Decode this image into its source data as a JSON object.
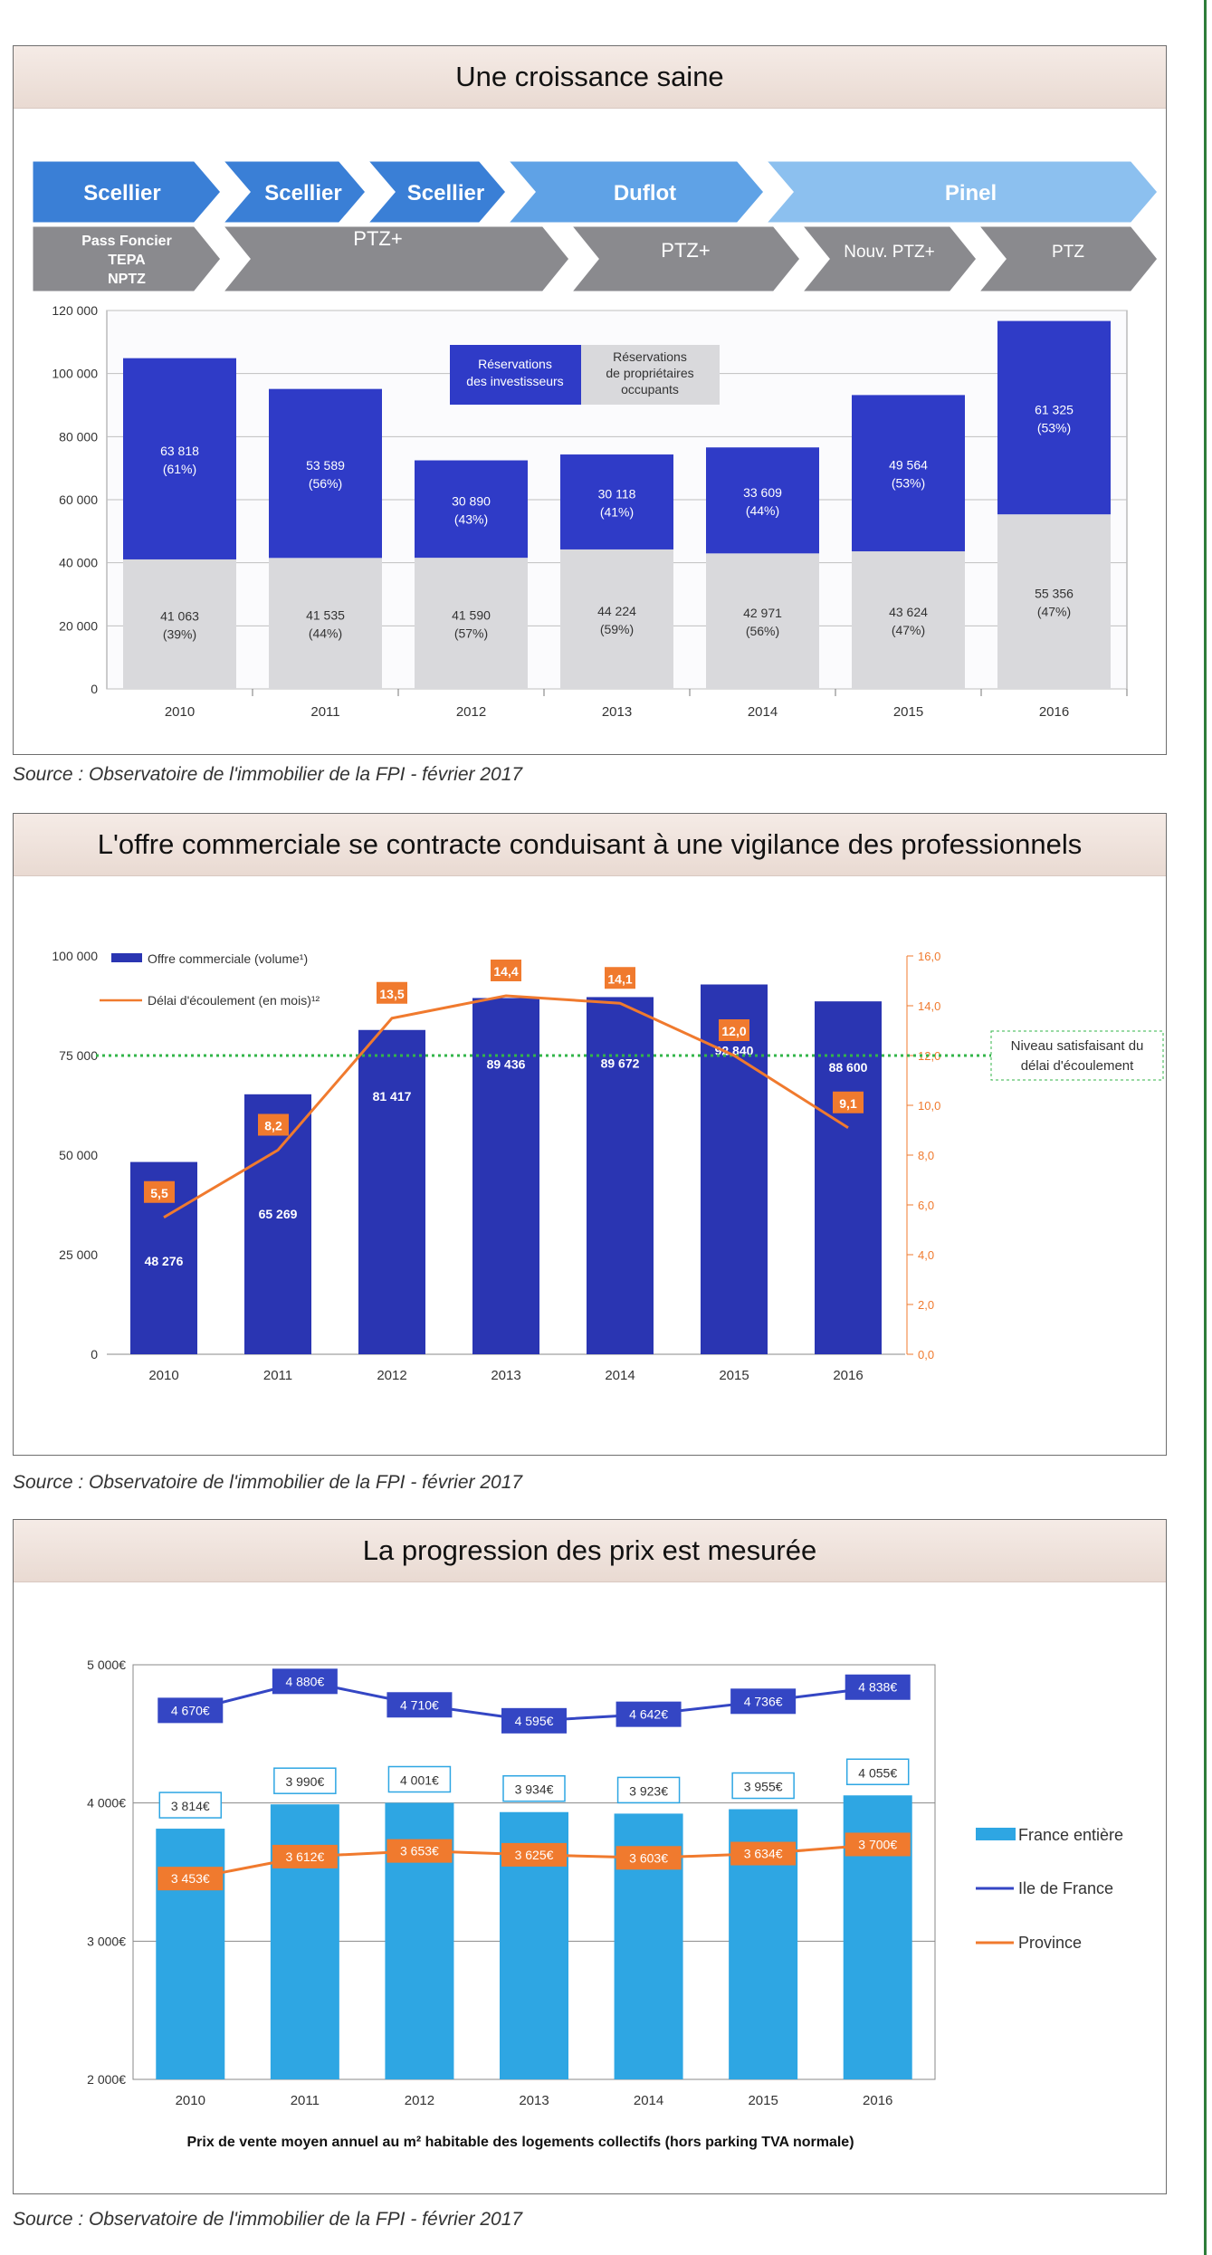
{
  "sources": {
    "s1": "Source : Observatoire de l'immobilier de la FPI - février 2017",
    "s2": "Source : Observatoire de l'immobilier de la FPI - février 2017",
    "s3": "Source : Observatoire de l'immobilier de la FPI - février 2017"
  },
  "colors": {
    "investors": "#2f3bc7",
    "owners": "#d9d9dc",
    "offer_bar": "#2a35b2",
    "delay_line": "#f07a2e",
    "threshold": "#33b54a",
    "france": "#2ea6e3",
    "idf": "#3446c4",
    "province": "#f07a2e"
  },
  "chart_data": [
    {
      "type": "bar",
      "title": "Une croissance saine",
      "programs_top": [
        "Scellier",
        "Scellier",
        "Scellier",
        "Duflot",
        "Pinel"
      ],
      "programs_bottom": [
        "Pass Foncier\nTEPA\nNPTZ",
        "PTZ+",
        "PTZ+",
        "Nouv. PTZ+",
        "PTZ"
      ],
      "categories": [
        "2010",
        "2011",
        "2012",
        "2013",
        "2014",
        "2015",
        "2016"
      ],
      "series": [
        {
          "name": "Réservations des investisseurs",
          "values": [
            63818,
            53589,
            30890,
            30118,
            33609,
            49564,
            61325
          ],
          "labels": [
            "63 818",
            "53 589",
            "30 890",
            "30 118",
            "33 609",
            "49 564",
            "61 325"
          ],
          "pct": [
            "(61%)",
            "(56%)",
            "(43%)",
            "(41%)",
            "(44%)",
            "(53%)",
            "(53%)"
          ]
        },
        {
          "name": "Réservations de propriétaires occupants",
          "values": [
            41063,
            41535,
            41590,
            44224,
            42971,
            43624,
            55356
          ],
          "labels": [
            "41 063",
            "41 535",
            "41 590",
            "44 224",
            "42 971",
            "43 624",
            "55 356"
          ],
          "pct": [
            "(39%)",
            "(44%)",
            "(57%)",
            "(59%)",
            "(56%)",
            "(47%)",
            "(47%)"
          ]
        }
      ],
      "legend": {
        "investors": [
          "Réservations",
          "des investisseurs"
        ],
        "owners": [
          "Réservations",
          "de propriétaires",
          "occupants"
        ]
      },
      "yticks": [
        "0",
        "20 000",
        "40 000",
        "60 000",
        "80 000",
        "100 000",
        "120 000"
      ],
      "ylim": [
        0,
        120000
      ]
    },
    {
      "type": "bar",
      "title": "L'offre commerciale se contracte conduisant à une vigilance des professionnels",
      "categories": [
        "2010",
        "2011",
        "2012",
        "2013",
        "2014",
        "2015",
        "2016"
      ],
      "series": [
        {
          "name": "Offre commerciale (volume¹)",
          "values": [
            48276,
            65269,
            81417,
            89436,
            89672,
            92840,
            88600
          ],
          "labels": [
            "48 276",
            "65 269",
            "81 417",
            "89 436",
            "89 672",
            "92 840",
            "88 600"
          ]
        },
        {
          "name": "Délai d'écoulement (en mois)¹²",
          "values": [
            5.5,
            8.2,
            13.5,
            14.4,
            14.1,
            12.0,
            9.1
          ],
          "labels": [
            "5,5",
            "8,2",
            "13,5",
            "14,4",
            "14,1",
            "12,0",
            "9,1"
          ]
        }
      ],
      "threshold": {
        "value": 12,
        "label": [
          "Niveau satisfaisant du",
          "délai d'écoulement"
        ]
      },
      "yticks_left": [
        "0",
        "25 000",
        "50 000",
        "75 000",
        "100 000"
      ],
      "ylim_left": [
        0,
        100000
      ],
      "yticks_right": [
        "0,0",
        "2,0",
        "4,0",
        "6,0",
        "8,0",
        "10,0",
        "12,0",
        "14,0",
        "16,0"
      ],
      "ylim_right": [
        0,
        16
      ]
    },
    {
      "type": "bar",
      "title": "La progression des prix est mesurée",
      "categories": [
        "2010",
        "2011",
        "2012",
        "2013",
        "2014",
        "2015",
        "2016"
      ],
      "series": [
        {
          "name": "France entière",
          "values": [
            3814,
            3990,
            4001,
            3934,
            3923,
            3955,
            4055
          ],
          "labels": [
            "3 814€",
            "3 990€",
            "4 001€",
            "3 934€",
            "3 923€",
            "3 955€",
            "4 055€"
          ]
        },
        {
          "name": "Ile de France",
          "values": [
            4670,
            4880,
            4710,
            4595,
            4642,
            4736,
            4838
          ],
          "labels": [
            "4 670€",
            "4 880€",
            "4 710€",
            "4 595€",
            "4 642€",
            "4 736€",
            "4 838€"
          ]
        },
        {
          "name": "Province",
          "values": [
            3453,
            3612,
            3653,
            3625,
            3603,
            3634,
            3700
          ],
          "labels": [
            "3 453€",
            "3 612€",
            "3 653€",
            "3 625€",
            "3 603€",
            "3 634€",
            "3 700€"
          ]
        }
      ],
      "yticks": [
        "2 000€",
        "3 000€",
        "4 000€",
        "5 000€"
      ],
      "ylim": [
        2000,
        5000
      ],
      "xlabel": "Prix de vente moyen annuel au m² habitable des logements collectifs (hors parking TVA normale)"
    }
  ]
}
